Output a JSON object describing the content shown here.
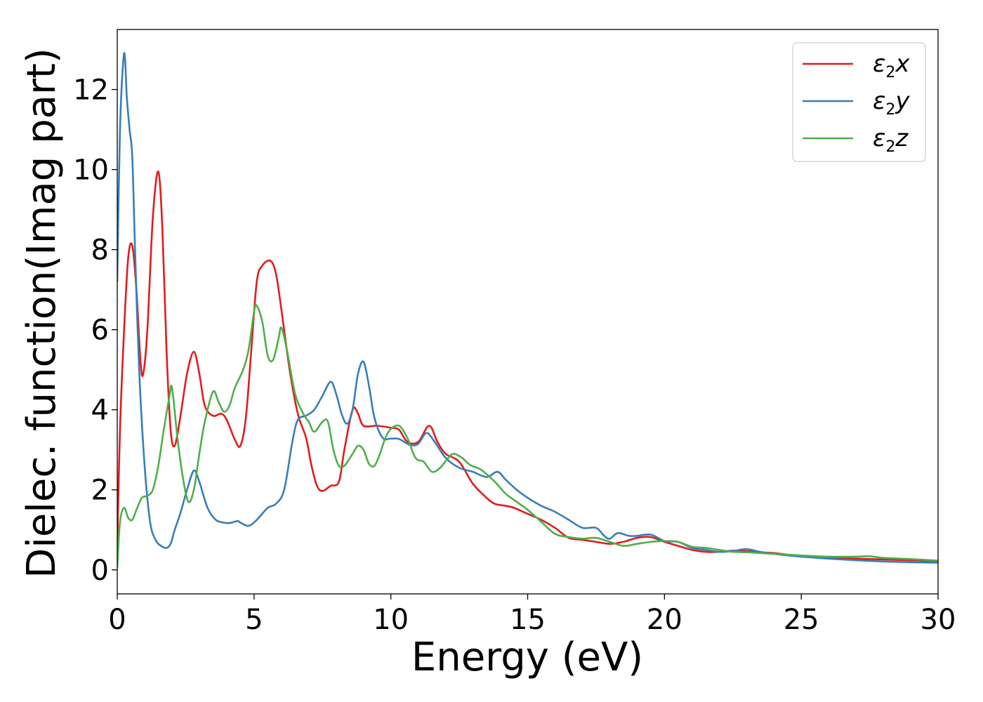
{
  "chart_data": {
    "type": "line",
    "xlabel": "Energy (eV)",
    "ylabel": "Dielec. function(Imag part)",
    "xlim": [
      0,
      30
    ],
    "ylim": [
      -0.6,
      13.5
    ],
    "x_ticks": [
      "0",
      "5",
      "10",
      "15",
      "20",
      "25",
      "30"
    ],
    "y_ticks": [
      "0",
      "2",
      "4",
      "6",
      "8",
      "10",
      "12"
    ],
    "grid": false,
    "legend_position": "top-right",
    "series": [
      {
        "name": "ε2x",
        "legend_symbol": "ε",
        "legend_subscript": "2",
        "legend_suffix": "x",
        "color": "#e41a1c",
        "points": [
          [
            0,
            0.6
          ],
          [
            0.1,
            3.5
          ],
          [
            0.25,
            6.0
          ],
          [
            0.4,
            7.8
          ],
          [
            0.55,
            8.1
          ],
          [
            0.7,
            7.0
          ],
          [
            0.85,
            5.2
          ],
          [
            0.95,
            4.9
          ],
          [
            1.1,
            6.0
          ],
          [
            1.3,
            8.8
          ],
          [
            1.5,
            9.95
          ],
          [
            1.65,
            8.5
          ],
          [
            1.8,
            5.5
          ],
          [
            1.95,
            3.5
          ],
          [
            2.1,
            3.1
          ],
          [
            2.3,
            3.8
          ],
          [
            2.55,
            4.9
          ],
          [
            2.8,
            5.45
          ],
          [
            3.0,
            4.9
          ],
          [
            3.2,
            4.1
          ],
          [
            3.5,
            3.85
          ],
          [
            3.8,
            3.9
          ],
          [
            4.0,
            3.75
          ],
          [
            4.3,
            3.25
          ],
          [
            4.5,
            3.1
          ],
          [
            4.7,
            3.8
          ],
          [
            4.9,
            5.5
          ],
          [
            5.1,
            7.2
          ],
          [
            5.3,
            7.6
          ],
          [
            5.6,
            7.72
          ],
          [
            5.8,
            7.4
          ],
          [
            6.0,
            6.5
          ],
          [
            6.3,
            5.0
          ],
          [
            6.6,
            3.9
          ],
          [
            6.9,
            3.3
          ],
          [
            7.1,
            2.6
          ],
          [
            7.3,
            2.1
          ],
          [
            7.5,
            1.97
          ],
          [
            7.8,
            2.1
          ],
          [
            8.1,
            2.2
          ],
          [
            8.3,
            3.0
          ],
          [
            8.6,
            4.0
          ],
          [
            8.8,
            3.9
          ],
          [
            9.0,
            3.6
          ],
          [
            9.5,
            3.6
          ],
          [
            10.0,
            3.55
          ],
          [
            10.3,
            3.5
          ],
          [
            10.6,
            3.2
          ],
          [
            11.0,
            3.2
          ],
          [
            11.4,
            3.6
          ],
          [
            11.7,
            3.2
          ],
          [
            12.0,
            2.9
          ],
          [
            12.5,
            2.7
          ],
          [
            13.0,
            2.15
          ],
          [
            13.5,
            1.8
          ],
          [
            13.8,
            1.65
          ],
          [
            14.2,
            1.6
          ],
          [
            14.5,
            1.55
          ],
          [
            15.0,
            1.4
          ],
          [
            15.5,
            1.25
          ],
          [
            16.0,
            1.05
          ],
          [
            16.5,
            0.8
          ],
          [
            17.0,
            0.75
          ],
          [
            17.5,
            0.7
          ],
          [
            18.0,
            0.65
          ],
          [
            18.5,
            0.7
          ],
          [
            19.0,
            0.8
          ],
          [
            19.5,
            0.82
          ],
          [
            20.0,
            0.7
          ],
          [
            20.5,
            0.6
          ],
          [
            21.0,
            0.5
          ],
          [
            21.5,
            0.45
          ],
          [
            22.0,
            0.45
          ],
          [
            22.5,
            0.48
          ],
          [
            23.0,
            0.47
          ],
          [
            23.5,
            0.44
          ],
          [
            24.0,
            0.42
          ],
          [
            24.5,
            0.38
          ],
          [
            25.0,
            0.35
          ],
          [
            26.0,
            0.3
          ],
          [
            27.0,
            0.28
          ],
          [
            28.0,
            0.26
          ],
          [
            29.0,
            0.24
          ],
          [
            30.0,
            0.22
          ]
        ]
      },
      {
        "name": "ε2y",
        "legend_symbol": "ε",
        "legend_subscript": "2",
        "legend_suffix": "y",
        "color": "#377eb8",
        "points": [
          [
            0,
            7.2
          ],
          [
            0.1,
            11.0
          ],
          [
            0.25,
            12.9
          ],
          [
            0.35,
            11.8
          ],
          [
            0.45,
            11.0
          ],
          [
            0.55,
            10.3
          ],
          [
            0.65,
            8.0
          ],
          [
            0.8,
            5.0
          ],
          [
            1.0,
            2.6
          ],
          [
            1.2,
            1.2
          ],
          [
            1.4,
            0.75
          ],
          [
            1.6,
            0.6
          ],
          [
            1.8,
            0.55
          ],
          [
            1.95,
            0.65
          ],
          [
            2.1,
            1.0
          ],
          [
            2.3,
            1.4
          ],
          [
            2.55,
            2.0
          ],
          [
            2.8,
            2.48
          ],
          [
            3.0,
            2.2
          ],
          [
            3.3,
            1.55
          ],
          [
            3.6,
            1.25
          ],
          [
            3.9,
            1.18
          ],
          [
            4.1,
            1.17
          ],
          [
            4.4,
            1.22
          ],
          [
            4.5,
            1.18
          ],
          [
            4.8,
            1.1
          ],
          [
            5.1,
            1.25
          ],
          [
            5.5,
            1.55
          ],
          [
            5.8,
            1.65
          ],
          [
            6.1,
            2.0
          ],
          [
            6.4,
            3.2
          ],
          [
            6.6,
            3.75
          ],
          [
            6.9,
            3.85
          ],
          [
            7.2,
            4.0
          ],
          [
            7.5,
            4.35
          ],
          [
            7.8,
            4.7
          ],
          [
            8.0,
            4.4
          ],
          [
            8.2,
            3.9
          ],
          [
            8.4,
            3.65
          ],
          [
            8.6,
            4.0
          ],
          [
            8.8,
            4.9
          ],
          [
            9.0,
            5.2
          ],
          [
            9.2,
            4.6
          ],
          [
            9.4,
            3.8
          ],
          [
            9.7,
            3.3
          ],
          [
            10.0,
            3.28
          ],
          [
            10.3,
            3.27
          ],
          [
            10.7,
            3.12
          ],
          [
            11.0,
            3.15
          ],
          [
            11.3,
            3.42
          ],
          [
            11.6,
            3.2
          ],
          [
            12.0,
            2.8
          ],
          [
            12.5,
            2.55
          ],
          [
            13.0,
            2.45
          ],
          [
            13.5,
            2.32
          ],
          [
            13.9,
            2.45
          ],
          [
            14.2,
            2.25
          ],
          [
            14.6,
            2.0
          ],
          [
            15.0,
            1.8
          ],
          [
            15.5,
            1.6
          ],
          [
            16.0,
            1.45
          ],
          [
            16.5,
            1.25
          ],
          [
            17.0,
            1.05
          ],
          [
            17.5,
            1.05
          ],
          [
            17.8,
            0.85
          ],
          [
            18.0,
            0.78
          ],
          [
            18.3,
            0.92
          ],
          [
            18.7,
            0.85
          ],
          [
            19.0,
            0.85
          ],
          [
            19.5,
            0.88
          ],
          [
            20.0,
            0.72
          ],
          [
            20.5,
            0.7
          ],
          [
            21.0,
            0.55
          ],
          [
            21.5,
            0.5
          ],
          [
            22.0,
            0.45
          ],
          [
            22.5,
            0.47
          ],
          [
            23.0,
            0.52
          ],
          [
            23.5,
            0.45
          ],
          [
            24.0,
            0.4
          ],
          [
            24.5,
            0.36
          ],
          [
            25.0,
            0.33
          ],
          [
            26.0,
            0.28
          ],
          [
            27.0,
            0.24
          ],
          [
            28.0,
            0.21
          ],
          [
            29.0,
            0.19
          ],
          [
            30.0,
            0.18
          ]
        ]
      },
      {
        "name": "ε2z",
        "legend_symbol": "ε",
        "legend_subscript": "2",
        "legend_suffix": "z",
        "color": "#4daf4a",
        "points": [
          [
            0,
            0.05
          ],
          [
            0.1,
            1.2
          ],
          [
            0.25,
            1.55
          ],
          [
            0.4,
            1.3
          ],
          [
            0.55,
            1.25
          ],
          [
            0.7,
            1.5
          ],
          [
            0.9,
            1.8
          ],
          [
            1.1,
            1.85
          ],
          [
            1.3,
            2.0
          ],
          [
            1.5,
            2.6
          ],
          [
            1.7,
            3.5
          ],
          [
            1.9,
            4.3
          ],
          [
            2.0,
            4.55
          ],
          [
            2.2,
            3.3
          ],
          [
            2.4,
            2.3
          ],
          [
            2.6,
            1.7
          ],
          [
            2.8,
            2.0
          ],
          [
            3.0,
            2.9
          ],
          [
            3.2,
            3.7
          ],
          [
            3.5,
            4.45
          ],
          [
            3.7,
            4.2
          ],
          [
            3.9,
            3.95
          ],
          [
            4.1,
            4.1
          ],
          [
            4.3,
            4.55
          ],
          [
            4.6,
            5.0
          ],
          [
            4.8,
            5.5
          ],
          [
            5.0,
            6.45
          ],
          [
            5.1,
            6.6
          ],
          [
            5.3,
            6.2
          ],
          [
            5.5,
            5.35
          ],
          [
            5.7,
            5.25
          ],
          [
            5.9,
            5.8
          ],
          [
            6.0,
            6.05
          ],
          [
            6.2,
            5.5
          ],
          [
            6.5,
            4.4
          ],
          [
            6.8,
            3.9
          ],
          [
            7.0,
            3.7
          ],
          [
            7.2,
            3.45
          ],
          [
            7.5,
            3.7
          ],
          [
            7.7,
            3.7
          ],
          [
            7.9,
            3.0
          ],
          [
            8.1,
            2.6
          ],
          [
            8.3,
            2.6
          ],
          [
            8.6,
            2.9
          ],
          [
            8.8,
            3.1
          ],
          [
            9.0,
            3.0
          ],
          [
            9.2,
            2.65
          ],
          [
            9.4,
            2.6
          ],
          [
            9.6,
            2.9
          ],
          [
            9.8,
            3.3
          ],
          [
            10.0,
            3.52
          ],
          [
            10.3,
            3.6
          ],
          [
            10.6,
            3.3
          ],
          [
            10.9,
            2.8
          ],
          [
            11.2,
            2.7
          ],
          [
            11.5,
            2.45
          ],
          [
            11.8,
            2.55
          ],
          [
            12.1,
            2.8
          ],
          [
            12.3,
            2.9
          ],
          [
            12.6,
            2.8
          ],
          [
            12.9,
            2.62
          ],
          [
            13.3,
            2.5
          ],
          [
            13.8,
            2.2
          ],
          [
            14.2,
            1.9
          ],
          [
            14.6,
            1.7
          ],
          [
            15.0,
            1.5
          ],
          [
            15.5,
            1.2
          ],
          [
            16.0,
            0.9
          ],
          [
            16.5,
            0.82
          ],
          [
            17.0,
            0.78
          ],
          [
            17.5,
            0.8
          ],
          [
            18.0,
            0.7
          ],
          [
            18.5,
            0.6
          ],
          [
            19.0,
            0.65
          ],
          [
            19.5,
            0.7
          ],
          [
            20.0,
            0.72
          ],
          [
            20.5,
            0.7
          ],
          [
            21.0,
            0.58
          ],
          [
            21.5,
            0.55
          ],
          [
            22.0,
            0.5
          ],
          [
            22.5,
            0.45
          ],
          [
            23.0,
            0.44
          ],
          [
            23.5,
            0.42
          ],
          [
            24.0,
            0.4
          ],
          [
            24.5,
            0.38
          ],
          [
            25.0,
            0.36
          ],
          [
            26.0,
            0.33
          ],
          [
            27.0,
            0.33
          ],
          [
            27.5,
            0.34
          ],
          [
            28.0,
            0.3
          ],
          [
            29.0,
            0.27
          ],
          [
            30.0,
            0.23
          ]
        ]
      }
    ]
  }
}
